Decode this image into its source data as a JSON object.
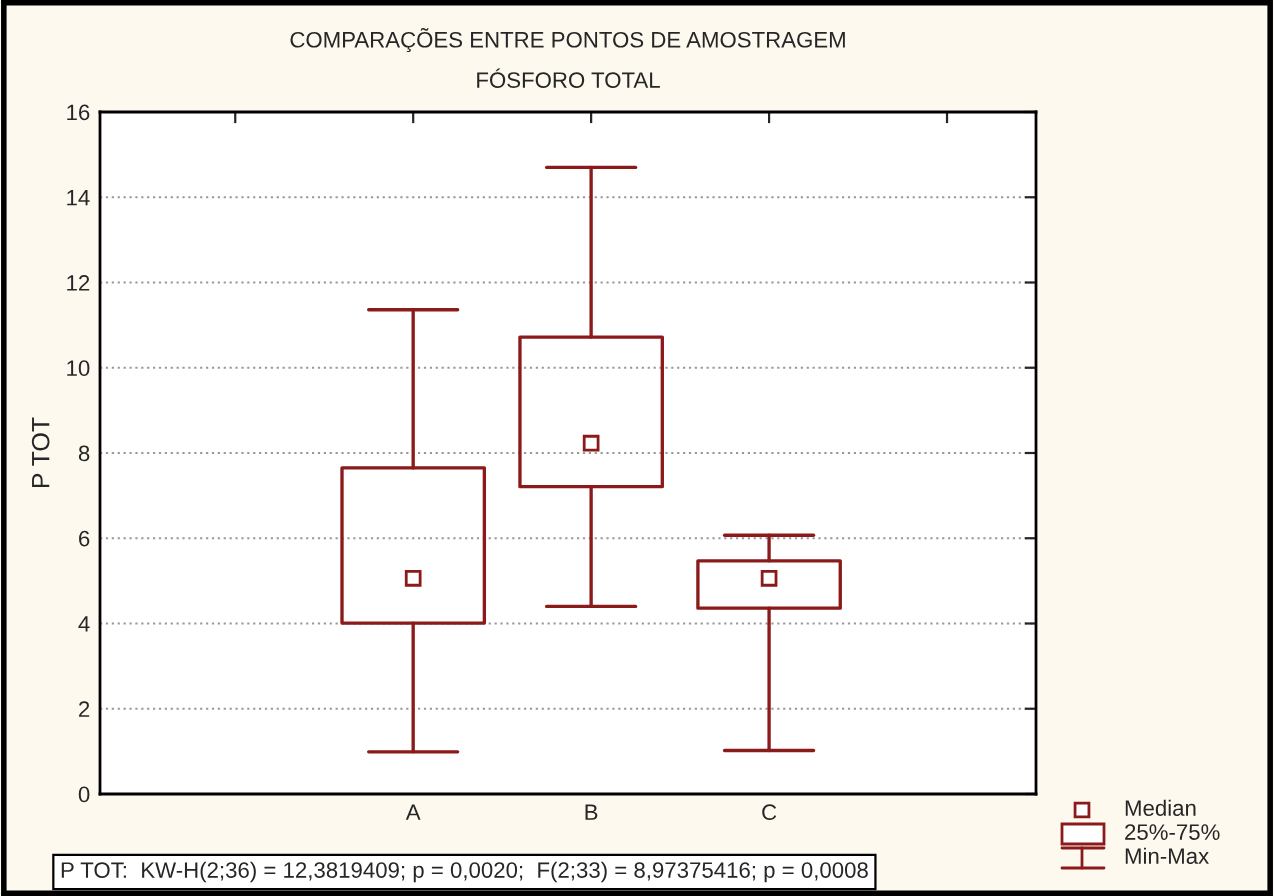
{
  "chart_data": {
    "type": "box",
    "title": "COMPARAÇÕES ENTRE PONTOS DE AMOSTRAGEM",
    "subtitle": "FÓSFORO TOTAL",
    "ylabel": "P TOT",
    "categories": [
      null,
      "A",
      "B",
      "C",
      null
    ],
    "series": [
      {
        "color": "#8b1a1a",
        "boxes": [
          null,
          {
            "low": 0.99,
            "q1": 4.01,
            "median": 5.06,
            "q3": 7.65,
            "high": 11.36
          },
          {
            "low": 4.4,
            "q1": 7.21,
            "median": 8.23,
            "q3": 10.72,
            "high": 14.7
          },
          {
            "low": 1.02,
            "q1": 4.36,
            "median": 5.06,
            "q3": 5.47,
            "high": 6.07
          },
          null
        ]
      }
    ],
    "ylim": [
      0,
      16
    ],
    "yticks": [
      0,
      2,
      4,
      6,
      8,
      10,
      12,
      14,
      16
    ],
    "grid": "y",
    "annotations": [
      "P TOT:  KW-H(2;36) = 12,3819409; p = 0,0020;  F(2;33) = 8,97375416; p = 0,0008",
      "Median",
      "25%-75%",
      "Min-Max"
    ]
  }
}
